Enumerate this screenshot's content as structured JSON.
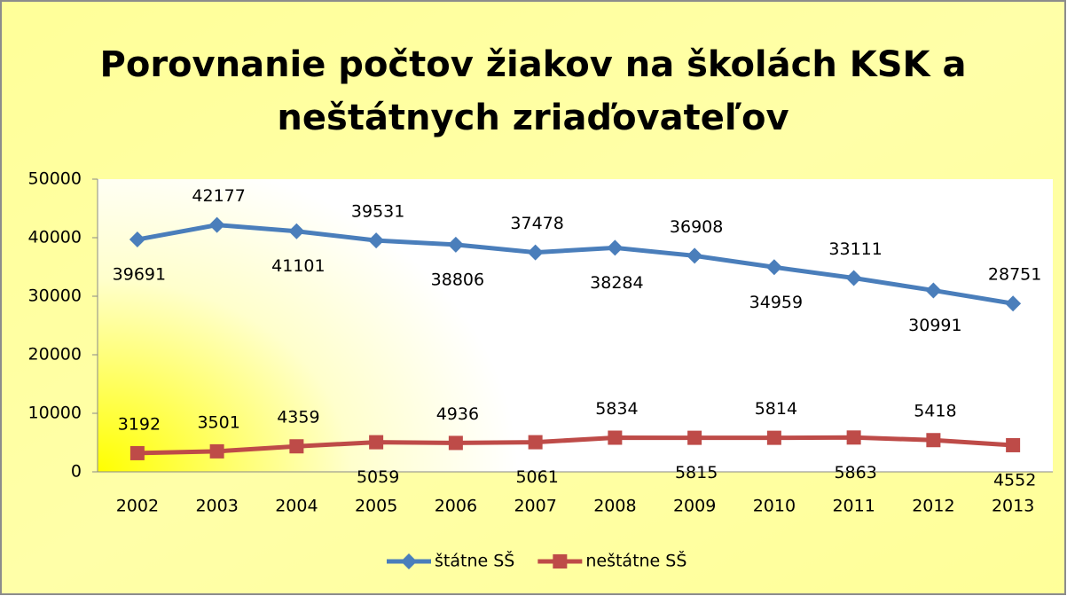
{
  "chart_data": {
    "type": "line",
    "title": [
      "Porovnanie počtov žiakov na školách KSK a",
      "neštátnych zriaďovateľov"
    ],
    "categories": [
      "2002",
      "2003",
      "2004",
      "2005",
      "2006",
      "2007",
      "2008",
      "2009",
      "2010",
      "2011",
      "2012",
      "2013"
    ],
    "series": [
      {
        "name": "štátne SŠ",
        "color": "#4a7ebb",
        "marker": "diamond",
        "values": [
          39691,
          42177,
          41101,
          39531,
          38806,
          37478,
          38284,
          36908,
          34959,
          33111,
          30991,
          28751
        ]
      },
      {
        "name": "neštátne SŠ",
        "color": "#be4b48",
        "marker": "square",
        "values": [
          3192,
          3501,
          4359,
          5059,
          4936,
          5061,
          5834,
          5815,
          5814,
          5863,
          5418,
          4552
        ]
      }
    ],
    "ylim": [
      0,
      50000
    ],
    "yticks": [
      0,
      10000,
      20000,
      30000,
      40000,
      50000
    ],
    "legend": "bottom"
  }
}
